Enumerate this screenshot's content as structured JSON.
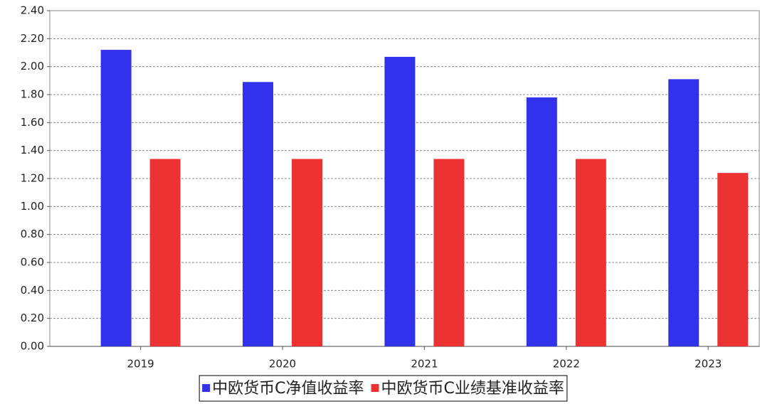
{
  "chart_data": {
    "type": "bar",
    "categories": [
      "2019",
      "2020",
      "2021",
      "2022",
      "2023"
    ],
    "series": [
      {
        "name": "中欧货币C净值收益率",
        "color": "#3232ec",
        "values": [
          2.12,
          1.89,
          2.07,
          1.78,
          1.91
        ]
      },
      {
        "name": "中欧货币C业绩基准收益率",
        "color": "#ec3232",
        "values": [
          1.34,
          1.34,
          1.34,
          1.34,
          1.24
        ]
      }
    ],
    "ylim": [
      0,
      2.4
    ],
    "yticks": [
      {
        "value": 0,
        "label": "0.00"
      },
      {
        "value": 0.2,
        "label": "0.20"
      },
      {
        "value": 0.4,
        "label": "0.40"
      },
      {
        "value": 0.6,
        "label": "0.60"
      },
      {
        "value": 0.8,
        "label": "0.80"
      },
      {
        "value": 1,
        "label": "1.00"
      },
      {
        "value": 1.2,
        "label": "1.20"
      },
      {
        "value": 1.4,
        "label": "1.40"
      },
      {
        "value": 1.6,
        "label": "1.60"
      },
      {
        "value": 1.8,
        "label": "1.80"
      },
      {
        "value": 2,
        "label": "2.00"
      },
      {
        "value": 2.2,
        "label": "2.20"
      },
      {
        "value": 2.4,
        "label": "2.40"
      }
    ],
    "grid": true
  }
}
